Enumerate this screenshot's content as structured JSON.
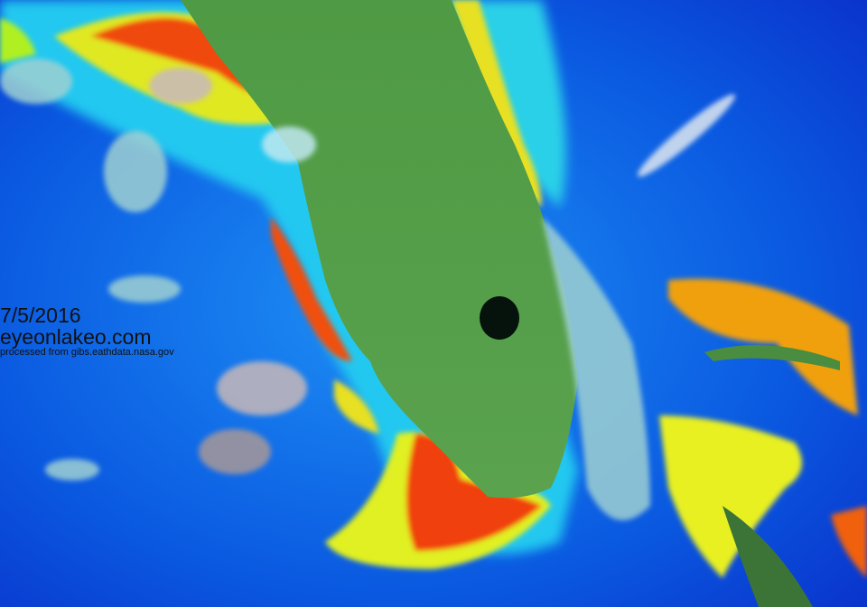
{
  "map": {
    "date": "7/5/2016",
    "site": "eyeonlakeo.com",
    "credit": "processed from gibs.eathdata.nasa.gov",
    "colors": {
      "ocean_deep": "#0a2fd0",
      "ocean": "#1a7cf0",
      "shelf": "#2fd0f0",
      "bloom_low": "#2fe08a",
      "bloom_mid": "#e8f020",
      "bloom_high": "#f04010",
      "land": "#4c9a44",
      "lake": "#06120c",
      "cloud": "#a8d8d8"
    }
  }
}
